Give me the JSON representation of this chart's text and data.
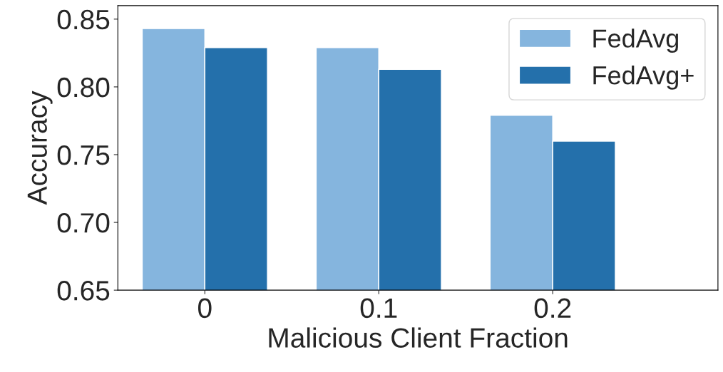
{
  "chart_data": {
    "type": "bar",
    "xlabel": "Malicious Client Fraction",
    "ylabel": "Accuracy",
    "categories": [
      "0",
      "0.1",
      "0.2"
    ],
    "series": [
      {
        "name": "FedAvg",
        "color": "#85b5de",
        "values": [
          0.843,
          0.829,
          0.779
        ]
      },
      {
        "name": "FedAvg+",
        "color": "#2470ab",
        "values": [
          0.829,
          0.813,
          0.76
        ]
      }
    ],
    "ylim": [
      0.65,
      0.86
    ],
    "yticks": [
      0.65,
      {
        "value": 0.7,
        "label": "0.70"
      },
      0.75,
      {
        "value": 0.8,
        "label": "0.80"
      },
      0.85
    ],
    "legend": "top right",
    "grid": false
  }
}
